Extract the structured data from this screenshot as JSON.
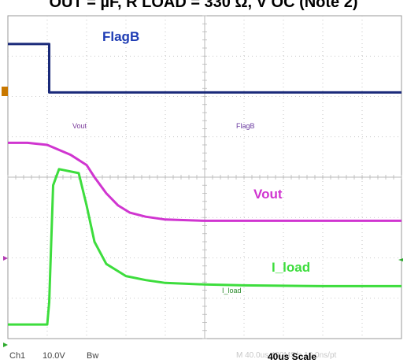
{
  "page_title": "OUT = µF, R LOAD = 330 Ω, V OC (Note 2)",
  "chart_data": {
    "type": "line",
    "title": "",
    "xlabel": "",
    "ylabel": "",
    "time_scale": "40us Scale",
    "xlim": [
      0,
      10
    ],
    "ylim": [
      0,
      8
    ],
    "grid": true,
    "traces": [
      {
        "name": "FlagB",
        "label_large": "FlagB",
        "label_small": "FlagB",
        "color": "#1a2a7a",
        "label_color": "#1e3cb4",
        "x": [
          0,
          1.05,
          1.05,
          2.0,
          4.0,
          6.0,
          8.0,
          10.0
        ],
        "y": [
          7.3,
          7.3,
          6.1,
          6.1,
          6.1,
          6.1,
          6.1,
          6.1
        ]
      },
      {
        "name": "Vout",
        "label_large": "Vout",
        "label_small": "Vout",
        "color": "#d035d0",
        "label_color": "#d035d0",
        "x": [
          0,
          0.5,
          1.0,
          1.6,
          2.0,
          2.2,
          2.5,
          2.8,
          3.1,
          3.5,
          4.0,
          5.0,
          6.0,
          8.0,
          10.0
        ],
        "y": [
          4.85,
          4.85,
          4.8,
          4.55,
          4.3,
          4.0,
          3.6,
          3.3,
          3.12,
          3.02,
          2.95,
          2.92,
          2.92,
          2.92,
          2.92
        ]
      },
      {
        "name": "I_load",
        "label_large": "I_load",
        "label_small": "I_load",
        "color": "#3ddd3d",
        "label_color": "#3ddd3d",
        "x": [
          0,
          1.0,
          1.05,
          1.15,
          1.3,
          1.8,
          2.0,
          2.2,
          2.5,
          3.0,
          3.5,
          4.0,
          5.0,
          6.0,
          8.0,
          10.0
        ],
        "y": [
          0.35,
          0.35,
          0.9,
          3.8,
          4.2,
          4.1,
          3.3,
          2.4,
          1.85,
          1.55,
          1.45,
          1.38,
          1.34,
          1.32,
          1.3,
          1.3
        ]
      }
    ]
  },
  "status": {
    "ch1_name": "Ch1",
    "ch1_volts": "10.0V",
    "bw": "Bw",
    "faint_readout": "M 40.0us  400MS/s  10.0ns/pt",
    "scale": "40us Scale"
  },
  "colors": {
    "grid": "#b8b8b8",
    "border": "#9a9a9a",
    "marker_orange": "#c87800",
    "marker_magenta": "#b23ab2",
    "marker_green": "#2eaa2e"
  }
}
